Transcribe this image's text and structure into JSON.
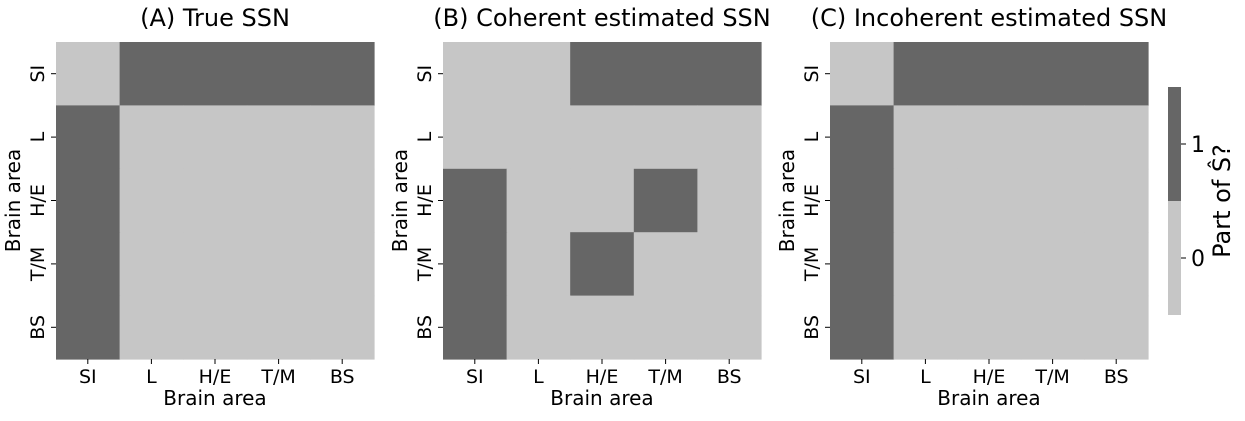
{
  "chart_data": {
    "type": "heatmap",
    "categories": [
      "SI",
      "L",
      "H/E",
      "T/M",
      "BS"
    ],
    "panels": [
      {
        "title": "(A) True SSN",
        "xlabel": "Brain area",
        "ylabel": "Brain area",
        "matrix": [
          [
            0,
            1,
            1,
            1,
            1
          ],
          [
            1,
            0,
            0,
            0,
            0
          ],
          [
            1,
            0,
            0,
            0,
            0
          ],
          [
            1,
            0,
            0,
            0,
            0
          ],
          [
            1,
            0,
            0,
            0,
            0
          ]
        ]
      },
      {
        "title": "(B) Coherent estimated SSN",
        "xlabel": "Brain area",
        "ylabel": "Brain area",
        "matrix": [
          [
            0,
            0,
            1,
            1,
            1
          ],
          [
            0,
            0,
            0,
            0,
            0
          ],
          [
            1,
            0,
            0,
            1,
            0
          ],
          [
            1,
            0,
            1,
            0,
            0
          ],
          [
            1,
            0,
            0,
            0,
            0
          ]
        ]
      },
      {
        "title": "(C) Incoherent estimated SSN",
        "xlabel": "Brain area",
        "ylabel": "Brain area",
        "matrix": [
          [
            0,
            1,
            1,
            1,
            1
          ],
          [
            1,
            0,
            0,
            0,
            0
          ],
          [
            1,
            0,
            0,
            0,
            0
          ],
          [
            1,
            0,
            0,
            0,
            0
          ],
          [
            1,
            0,
            0,
            0,
            0
          ]
        ]
      }
    ],
    "colorbar": {
      "label": "Part of Ŝ?",
      "ticks": [
        "0",
        "1"
      ],
      "colors": {
        "0": "#c6c6c6",
        "1": "#666666"
      }
    }
  }
}
